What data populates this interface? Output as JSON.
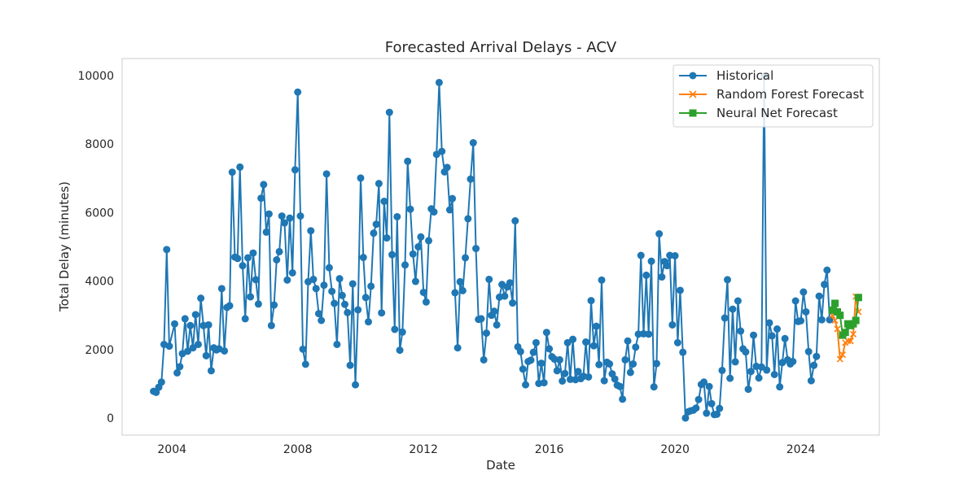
{
  "chart_data": {
    "type": "line",
    "title": "Forecasted Arrival Delays - ACV",
    "xlabel": "Date",
    "ylabel": "Total Delay (minutes)",
    "xlim": [
      "2002-06-01",
      "2026-07-01"
    ],
    "ylim": [
      -500,
      10500
    ],
    "x_ticks": [
      "2004",
      "2008",
      "2012",
      "2016",
      "2020",
      "2024"
    ],
    "y_ticks": [
      0,
      2000,
      4000,
      6000,
      8000,
      10000
    ],
    "grid": false,
    "legend_position": "top-right",
    "series": [
      {
        "name": "Historical",
        "color": "#1f77b4",
        "marker": "circle",
        "points": [
          [
            "2003-06-01",
            780
          ],
          [
            "2003-07-01",
            750
          ],
          [
            "2003-08-01",
            900
          ],
          [
            "2003-09-01",
            1050
          ],
          [
            "2003-10-01",
            2150
          ],
          [
            "2003-11-01",
            4920
          ],
          [
            "2003-12-01",
            2100
          ],
          [
            "2004-02-01",
            2750
          ],
          [
            "2004-03-01",
            1320
          ],
          [
            "2004-04-01",
            1500
          ],
          [
            "2004-05-01",
            1880
          ],
          [
            "2004-06-01",
            2900
          ],
          [
            "2004-07-01",
            1950
          ],
          [
            "2004-08-01",
            2700
          ],
          [
            "2004-09-01",
            2050
          ],
          [
            "2004-10-01",
            3020
          ],
          [
            "2004-11-01",
            2150
          ],
          [
            "2004-12-01",
            3500
          ],
          [
            "2005-01-01",
            2700
          ],
          [
            "2005-02-01",
            1820
          ],
          [
            "2005-03-01",
            2720
          ],
          [
            "2005-04-01",
            1380
          ],
          [
            "2005-05-01",
            2050
          ],
          [
            "2005-06-01",
            1990
          ],
          [
            "2005-07-01",
            2020
          ],
          [
            "2005-08-01",
            3780
          ],
          [
            "2005-09-01",
            1960
          ],
          [
            "2005-10-01",
            3230
          ],
          [
            "2005-11-01",
            3280
          ],
          [
            "2005-12-01",
            7180
          ],
          [
            "2006-01-01",
            4700
          ],
          [
            "2006-02-01",
            4660
          ],
          [
            "2006-03-01",
            7330
          ],
          [
            "2006-04-01",
            4450
          ],
          [
            "2006-05-01",
            2900
          ],
          [
            "2006-06-01",
            4680
          ],
          [
            "2006-07-01",
            3540
          ],
          [
            "2006-08-01",
            4820
          ],
          [
            "2006-09-01",
            4040
          ],
          [
            "2006-10-01",
            3330
          ],
          [
            "2006-11-01",
            6420
          ],
          [
            "2006-12-01",
            6820
          ],
          [
            "2007-01-01",
            5430
          ],
          [
            "2007-02-01",
            5960
          ],
          [
            "2007-03-01",
            2700
          ],
          [
            "2007-04-01",
            3300
          ],
          [
            "2007-05-01",
            4620
          ],
          [
            "2007-06-01",
            4860
          ],
          [
            "2007-07-01",
            5900
          ],
          [
            "2007-08-01",
            5700
          ],
          [
            "2007-09-01",
            4030
          ],
          [
            "2007-10-01",
            5840
          ],
          [
            "2007-11-01",
            4240
          ],
          [
            "2007-12-01",
            7250
          ],
          [
            "2008-01-01",
            9520
          ],
          [
            "2008-02-01",
            5900
          ],
          [
            "2008-03-01",
            2010
          ],
          [
            "2008-04-01",
            1570
          ],
          [
            "2008-05-01",
            3980
          ],
          [
            "2008-06-01",
            5470
          ],
          [
            "2008-07-01",
            4050
          ],
          [
            "2008-08-01",
            3780
          ],
          [
            "2008-09-01",
            3050
          ],
          [
            "2008-10-01",
            2850
          ],
          [
            "2008-11-01",
            3880
          ],
          [
            "2008-12-01",
            7130
          ],
          [
            "2009-01-01",
            4390
          ],
          [
            "2009-02-01",
            3700
          ],
          [
            "2009-03-01",
            3350
          ],
          [
            "2009-04-01",
            2150
          ],
          [
            "2009-05-01",
            4070
          ],
          [
            "2009-06-01",
            3580
          ],
          [
            "2009-07-01",
            3320
          ],
          [
            "2009-08-01",
            3080
          ],
          [
            "2009-09-01",
            1540
          ],
          [
            "2009-10-01",
            3920
          ],
          [
            "2009-11-01",
            970
          ],
          [
            "2009-12-01",
            3160
          ],
          [
            "2010-01-01",
            7010
          ],
          [
            "2010-02-01",
            4690
          ],
          [
            "2010-03-01",
            3520
          ],
          [
            "2010-04-01",
            2810
          ],
          [
            "2010-05-01",
            3850
          ],
          [
            "2010-06-01",
            5400
          ],
          [
            "2010-07-01",
            5660
          ],
          [
            "2010-08-01",
            6850
          ],
          [
            "2010-09-01",
            3070
          ],
          [
            "2010-10-01",
            6330
          ],
          [
            "2010-11-01",
            5260
          ],
          [
            "2010-12-01",
            8930
          ],
          [
            "2011-01-01",
            4770
          ],
          [
            "2011-02-01",
            2590
          ],
          [
            "2011-03-01",
            5880
          ],
          [
            "2011-04-01",
            1980
          ],
          [
            "2011-05-01",
            2510
          ],
          [
            "2011-06-01",
            4470
          ],
          [
            "2011-07-01",
            7500
          ],
          [
            "2011-08-01",
            6100
          ],
          [
            "2011-09-01",
            4790
          ],
          [
            "2011-10-01",
            3990
          ],
          [
            "2011-11-01",
            5000
          ],
          [
            "2011-12-01",
            5290
          ],
          [
            "2012-01-01",
            3670
          ],
          [
            "2012-02-01",
            3390
          ],
          [
            "2012-03-01",
            5180
          ],
          [
            "2012-04-01",
            6110
          ],
          [
            "2012-05-01",
            6020
          ],
          [
            "2012-06-01",
            7700
          ],
          [
            "2012-07-01",
            9800
          ],
          [
            "2012-08-01",
            7790
          ],
          [
            "2012-09-01",
            7190
          ],
          [
            "2012-10-01",
            7320
          ],
          [
            "2012-11-01",
            6080
          ],
          [
            "2012-12-01",
            6410
          ],
          [
            "2013-01-01",
            3660
          ],
          [
            "2013-02-01",
            2050
          ],
          [
            "2013-03-01",
            3980
          ],
          [
            "2013-04-01",
            3720
          ],
          [
            "2013-05-01",
            4680
          ],
          [
            "2013-06-01",
            5820
          ],
          [
            "2013-07-01",
            6980
          ],
          [
            "2013-08-01",
            8040
          ],
          [
            "2013-09-01",
            4950
          ],
          [
            "2013-10-01",
            2880
          ],
          [
            "2013-11-01",
            2900
          ],
          [
            "2013-12-01",
            1700
          ],
          [
            "2014-01-01",
            2480
          ],
          [
            "2014-02-01",
            4050
          ],
          [
            "2014-03-01",
            3000
          ],
          [
            "2014-04-01",
            3120
          ],
          [
            "2014-05-01",
            2720
          ],
          [
            "2014-06-01",
            3530
          ],
          [
            "2014-07-01",
            3900
          ],
          [
            "2014-08-01",
            3560
          ],
          [
            "2014-09-01",
            3830
          ],
          [
            "2014-10-01",
            3950
          ],
          [
            "2014-11-01",
            3360
          ],
          [
            "2014-12-01",
            5760
          ],
          [
            "2015-01-01",
            2080
          ],
          [
            "2015-02-01",
            1940
          ],
          [
            "2015-03-01",
            1430
          ],
          [
            "2015-04-01",
            970
          ],
          [
            "2015-05-01",
            1650
          ],
          [
            "2015-06-01",
            1690
          ],
          [
            "2015-07-01",
            1920
          ],
          [
            "2015-08-01",
            2200
          ],
          [
            "2015-09-01",
            1010
          ],
          [
            "2015-10-01",
            1600
          ],
          [
            "2015-11-01",
            1030
          ],
          [
            "2015-12-01",
            2500
          ],
          [
            "2016-01-01",
            2020
          ],
          [
            "2016-02-01",
            1790
          ],
          [
            "2016-03-01",
            1720
          ],
          [
            "2016-04-01",
            1380
          ],
          [
            "2016-05-01",
            1700
          ],
          [
            "2016-06-01",
            1080
          ],
          [
            "2016-07-01",
            1300
          ],
          [
            "2016-08-01",
            2200
          ],
          [
            "2016-09-01",
            1130
          ],
          [
            "2016-10-01",
            2300
          ],
          [
            "2016-11-01",
            1120
          ],
          [
            "2016-12-01",
            1360
          ],
          [
            "2017-01-01",
            1150
          ],
          [
            "2017-02-01",
            1220
          ],
          [
            "2017-03-01",
            2220
          ],
          [
            "2017-04-01",
            1200
          ],
          [
            "2017-05-01",
            3430
          ],
          [
            "2017-06-01",
            2110
          ],
          [
            "2017-07-01",
            2680
          ],
          [
            "2017-08-01",
            1560
          ],
          [
            "2017-09-01",
            4030
          ],
          [
            "2017-10-01",
            1090
          ],
          [
            "2017-11-01",
            1630
          ],
          [
            "2017-12-01",
            1580
          ],
          [
            "2018-01-01",
            1290
          ],
          [
            "2018-02-01",
            1140
          ],
          [
            "2018-03-01",
            960
          ],
          [
            "2018-04-01",
            920
          ],
          [
            "2018-05-01",
            550
          ],
          [
            "2018-06-01",
            1700
          ],
          [
            "2018-07-01",
            2250
          ],
          [
            "2018-08-01",
            1330
          ],
          [
            "2018-09-01",
            1580
          ],
          [
            "2018-10-01",
            2070
          ],
          [
            "2018-11-01",
            2450
          ],
          [
            "2018-12-01",
            4750
          ],
          [
            "2019-01-01",
            2460
          ],
          [
            "2019-02-01",
            4170
          ],
          [
            "2019-03-01",
            2450
          ],
          [
            "2019-04-01",
            4580
          ],
          [
            "2019-05-01",
            910
          ],
          [
            "2019-06-01",
            1590
          ],
          [
            "2019-07-01",
            5380
          ],
          [
            "2019-08-01",
            4120
          ],
          [
            "2019-09-01",
            4570
          ],
          [
            "2019-10-01",
            4450
          ],
          [
            "2019-11-01",
            4750
          ],
          [
            "2019-12-01",
            2720
          ],
          [
            "2020-01-01",
            4740
          ],
          [
            "2020-02-01",
            2200
          ],
          [
            "2020-03-01",
            3730
          ],
          [
            "2020-04-01",
            1920
          ],
          [
            "2020-05-01",
            0
          ],
          [
            "2020-06-01",
            180
          ],
          [
            "2020-07-01",
            210
          ],
          [
            "2020-08-01",
            230
          ],
          [
            "2020-09-01",
            290
          ],
          [
            "2020-10-01",
            540
          ],
          [
            "2020-11-01",
            980
          ],
          [
            "2020-12-01",
            1050
          ],
          [
            "2021-01-01",
            140
          ],
          [
            "2021-02-01",
            920
          ],
          [
            "2021-03-01",
            420
          ],
          [
            "2021-04-01",
            100
          ],
          [
            "2021-05-01",
            110
          ],
          [
            "2021-06-01",
            280
          ],
          [
            "2021-07-01",
            1390
          ],
          [
            "2021-08-01",
            2920
          ],
          [
            "2021-09-01",
            4040
          ],
          [
            "2021-10-01",
            1160
          ],
          [
            "2021-11-01",
            3180
          ],
          [
            "2021-12-01",
            1640
          ],
          [
            "2022-01-01",
            3420
          ],
          [
            "2022-02-01",
            2540
          ],
          [
            "2022-03-01",
            2020
          ],
          [
            "2022-04-01",
            1930
          ],
          [
            "2022-05-01",
            840
          ],
          [
            "2022-06-01",
            1360
          ],
          [
            "2022-07-01",
            2420
          ],
          [
            "2022-08-01",
            1510
          ],
          [
            "2022-09-01",
            1170
          ],
          [
            "2022-10-01",
            1490
          ],
          [
            "2022-11-01",
            9980
          ],
          [
            "2022-12-01",
            1400
          ],
          [
            "2023-01-01",
            2780
          ],
          [
            "2023-02-01",
            2400
          ],
          [
            "2023-03-01",
            1270
          ],
          [
            "2023-04-01",
            2600
          ],
          [
            "2023-05-01",
            910
          ],
          [
            "2023-06-01",
            1620
          ],
          [
            "2023-07-01",
            2320
          ],
          [
            "2023-08-01",
            1700
          ],
          [
            "2023-09-01",
            1580
          ],
          [
            "2023-10-01",
            1650
          ],
          [
            "2023-11-01",
            3420
          ],
          [
            "2023-12-01",
            2820
          ],
          [
            "2024-01-01",
            2840
          ],
          [
            "2024-02-01",
            3680
          ],
          [
            "2024-03-01",
            3100
          ],
          [
            "2024-04-01",
            1940
          ],
          [
            "2024-05-01",
            1090
          ],
          [
            "2024-06-01",
            1540
          ],
          [
            "2024-07-01",
            1800
          ],
          [
            "2024-08-01",
            3560
          ],
          [
            "2024-09-01",
            2870
          ],
          [
            "2024-10-01",
            3900
          ],
          [
            "2024-11-01",
            4320
          ],
          [
            "2024-12-01",
            2870
          ]
        ]
      },
      {
        "name": "Random Forest Forecast",
        "color": "#ff7f0e",
        "marker": "x",
        "points": [
          [
            "2025-01-01",
            3000
          ],
          [
            "2025-02-01",
            2850
          ],
          [
            "2025-03-01",
            2600
          ],
          [
            "2025-04-01",
            1720
          ],
          [
            "2025-05-01",
            1850
          ],
          [
            "2025-06-01",
            2200
          ],
          [
            "2025-07-01",
            2250
          ],
          [
            "2025-08-01",
            2250
          ],
          [
            "2025-09-01",
            2450
          ],
          [
            "2025-10-01",
            3550
          ],
          [
            "2025-11-01",
            3100
          ]
        ]
      },
      {
        "name": "Neural Net Forecast",
        "color": "#2ca02c",
        "marker": "square",
        "points": [
          [
            "2025-01-01",
            3150
          ],
          [
            "2025-02-01",
            3350
          ],
          [
            "2025-03-01",
            3100
          ],
          [
            "2025-04-01",
            3000
          ],
          [
            "2025-05-01",
            2420
          ],
          [
            "2025-06-01",
            2500
          ],
          [
            "2025-07-01",
            2750
          ],
          [
            "2025-08-01",
            2700
          ],
          [
            "2025-09-01",
            2750
          ],
          [
            "2025-10-01",
            2850
          ],
          [
            "2025-11-01",
            3520
          ]
        ]
      }
    ]
  }
}
